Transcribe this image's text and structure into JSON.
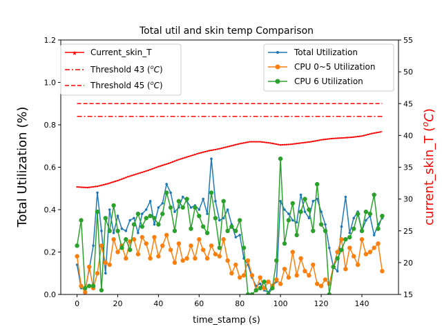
{
  "chart_data": {
    "type": "line",
    "title": "Total util and skin temp Comparison",
    "xlabel": "time_stamp (s)",
    "ylabel_left": "Total Utilization (%)",
    "ylabel_right_main": "current_skin_T (",
    "ylabel_right_unit": "o",
    "ylabel_right_unit_tail": "C",
    "ylabel_right_close": ")",
    "xlim": [
      -8,
      158
    ],
    "ylim_left": [
      0.0,
      1.2
    ],
    "ylim_right": [
      15,
      55
    ],
    "xticks": [
      0,
      20,
      40,
      60,
      80,
      100,
      120,
      140
    ],
    "yticks_left": [
      "0.0",
      "0.2",
      "0.4",
      "0.6",
      "0.8",
      "1.0",
      "1.2"
    ],
    "yticks_left_values": [
      0.0,
      0.2,
      0.4,
      0.6,
      0.8,
      1.0,
      1.2
    ],
    "yticks_right": [
      15,
      20,
      25,
      30,
      35,
      40,
      45,
      50,
      55
    ],
    "grid": false,
    "legend_left_placement": "top-left",
    "legend_right_placement": "top-right",
    "colors": {
      "total": "#1f77b4",
      "cpu05": "#ff7f0e",
      "cpu6": "#2ca02c",
      "skin": "#ff0000",
      "threshold": "#ff0000",
      "right_label": "#ff0000"
    },
    "legend_left": [
      {
        "label": "Current_skin_T",
        "style": "solid-star"
      },
      {
        "label_main": "Threshold 43 (",
        "label_unit": "o",
        "label_tail": "C",
        "label_close": ")",
        "style": "dashdot"
      },
      {
        "label_main": "Threshold 45 (",
        "label_unit": "o",
        "label_tail": "C",
        "label_close": ")",
        "style": "dashed"
      }
    ],
    "legend_right": [
      {
        "label": "Total Utilization",
        "series": "total"
      },
      {
        "label": "CPU 0~5 Utilization",
        "series": "cpu05"
      },
      {
        "label": "CPU 6 Utilization",
        "series": "cpu6"
      }
    ],
    "thresholds": [
      {
        "value": 43,
        "x_range": [
          0,
          150
        ],
        "style": "dashdot"
      },
      {
        "value": 45,
        "x_range": [
          0,
          150
        ],
        "style": "dashed"
      }
    ],
    "skin_temp": {
      "x": [
        0,
        5,
        10,
        15,
        20,
        25,
        30,
        35,
        40,
        45,
        50,
        55,
        60,
        65,
        70,
        75,
        80,
        85,
        90,
        95,
        100,
        105,
        110,
        115,
        120,
        125,
        130,
        135,
        140,
        145,
        150
      ],
      "y": [
        31.9,
        31.8,
        32.0,
        32.4,
        32.9,
        33.5,
        34.0,
        34.5,
        35.1,
        35.6,
        36.2,
        36.7,
        37.2,
        37.6,
        37.9,
        38.3,
        38.7,
        39.0,
        39.0,
        38.8,
        38.5,
        38.6,
        38.8,
        39.0,
        39.3,
        39.5,
        39.6,
        39.7,
        39.9,
        40.3,
        40.6
      ]
    },
    "series": [
      {
        "name": "Total Utilization",
        "key": "total",
        "x": [
          0,
          2,
          4,
          6,
          8,
          10,
          12,
          14,
          16,
          18,
          20,
          22,
          24,
          26,
          28,
          30,
          32,
          34,
          36,
          38,
          40,
          42,
          44,
          46,
          48,
          50,
          52,
          54,
          56,
          58,
          60,
          62,
          64,
          66,
          68,
          70,
          72,
          74,
          76,
          78,
          80,
          82,
          84,
          86,
          88,
          90,
          92,
          94,
          96,
          98,
          100,
          102,
          104,
          106,
          108,
          110,
          112,
          114,
          116,
          118,
          120,
          122,
          124,
          126,
          128,
          130,
          132,
          134,
          136,
          138,
          140,
          142,
          144,
          146,
          148,
          150
        ],
        "y": [
          0.14,
          0.03,
          0.02,
          0.12,
          0.23,
          0.48,
          0.3,
          0.1,
          0.4,
          0.29,
          0.37,
          0.31,
          0.3,
          0.35,
          0.36,
          0.29,
          0.38,
          0.4,
          0.44,
          0.33,
          0.41,
          0.43,
          0.52,
          0.48,
          0.39,
          0.41,
          0.46,
          0.44,
          0.41,
          0.42,
          0.4,
          0.45,
          0.38,
          0.64,
          0.44,
          0.35,
          0.36,
          0.4,
          0.33,
          0.27,
          0.28,
          0.17,
          0.14,
          0.08,
          0.04,
          0.05,
          0.02,
          0.01,
          0.04,
          0.06,
          0.44,
          0.4,
          0.38,
          0.35,
          0.34,
          0.47,
          0.39,
          0.36,
          0.44,
          0.45,
          0.39,
          0.33,
          0.22,
          0.13,
          0.11,
          0.32,
          0.46,
          0.29,
          0.36,
          0.39,
          0.3,
          0.35,
          0.37,
          0.28,
          0.33,
          0.36
        ]
      },
      {
        "name": "CPU 0~5 Utilization",
        "key": "cpu05",
        "x": [
          0,
          2,
          4,
          6,
          8,
          10,
          12,
          14,
          16,
          18,
          20,
          22,
          24,
          26,
          28,
          30,
          32,
          34,
          36,
          38,
          40,
          42,
          44,
          46,
          48,
          50,
          52,
          54,
          56,
          58,
          60,
          62,
          64,
          66,
          68,
          70,
          72,
          74,
          76,
          78,
          80,
          82,
          84,
          86,
          88,
          90,
          92,
          94,
          96,
          98,
          100,
          102,
          104,
          106,
          108,
          110,
          112,
          114,
          116,
          118,
          120,
          122,
          124,
          126,
          128,
          130,
          132,
          134,
          136,
          138,
          140,
          142,
          144,
          146,
          148,
          150
        ],
        "y": [
          0.18,
          0.04,
          0.01,
          0.13,
          0.03,
          0.1,
          0.23,
          0.15,
          0.14,
          0.26,
          0.2,
          0.23,
          0.17,
          0.25,
          0.26,
          0.19,
          0.27,
          0.24,
          0.17,
          0.27,
          0.18,
          0.23,
          0.28,
          0.21,
          0.15,
          0.24,
          0.16,
          0.17,
          0.23,
          0.17,
          0.26,
          0.21,
          0.17,
          0.23,
          0.19,
          0.18,
          0.26,
          0.16,
          0.1,
          0.14,
          0.08,
          0.09,
          0.16,
          0.09,
          0.02,
          0.08,
          0.03,
          0.06,
          0.04,
          0.07,
          0.05,
          0.12,
          0.08,
          0.2,
          0.09,
          0.17,
          0.11,
          0.09,
          0.14,
          0.05,
          0.04,
          0.07,
          0.05,
          0.13,
          0.2,
          0.26,
          0.12,
          0.22,
          0.18,
          0.14,
          0.26,
          0.19,
          0.2,
          0.22,
          0.24,
          0.11
        ]
      },
      {
        "name": "CPU 6 Utilization",
        "key": "cpu6",
        "x": [
          0,
          2,
          4,
          6,
          8,
          10,
          12,
          14,
          16,
          18,
          20,
          22,
          24,
          26,
          28,
          30,
          32,
          34,
          36,
          38,
          40,
          42,
          44,
          46,
          48,
          50,
          52,
          54,
          56,
          58,
          60,
          62,
          64,
          66,
          68,
          70,
          72,
          74,
          76,
          78,
          80,
          82,
          84,
          86,
          88,
          90,
          92,
          94,
          96,
          98,
          100,
          102,
          104,
          106,
          108,
          110,
          112,
          114,
          116,
          118,
          120,
          122,
          124,
          126,
          128,
          130,
          132,
          134,
          136,
          138,
          140,
          142,
          144,
          146,
          148,
          150
        ],
        "y": [
          0.23,
          0.35,
          0.03,
          0.04,
          0.04,
          0.39,
          0.02,
          0.36,
          0.3,
          0.42,
          0.3,
          0.22,
          0.26,
          0.21,
          0.33,
          0.38,
          0.32,
          0.36,
          0.37,
          0.36,
          0.33,
          0.38,
          0.48,
          0.41,
          0.3,
          0.44,
          0.41,
          0.45,
          0.31,
          0.41,
          0.37,
          0.32,
          0.29,
          0.48,
          0.36,
          0.22,
          0.44,
          0.3,
          0.32,
          0.3,
          0.35,
          0.22,
          0.0,
          0.0,
          0.02,
          0.03,
          0.06,
          0.0,
          0.03,
          0.16,
          0.64,
          0.24,
          0.35,
          0.43,
          0.28,
          0.39,
          0.45,
          0.4,
          0.3,
          0.52,
          0.33,
          0.3,
          0.0,
          0.13,
          0.17,
          0.21,
          0.26,
          0.27,
          0.31,
          0.38,
          0.3,
          0.39,
          0.38,
          0.47,
          0.31,
          0.37
        ]
      }
    ]
  }
}
